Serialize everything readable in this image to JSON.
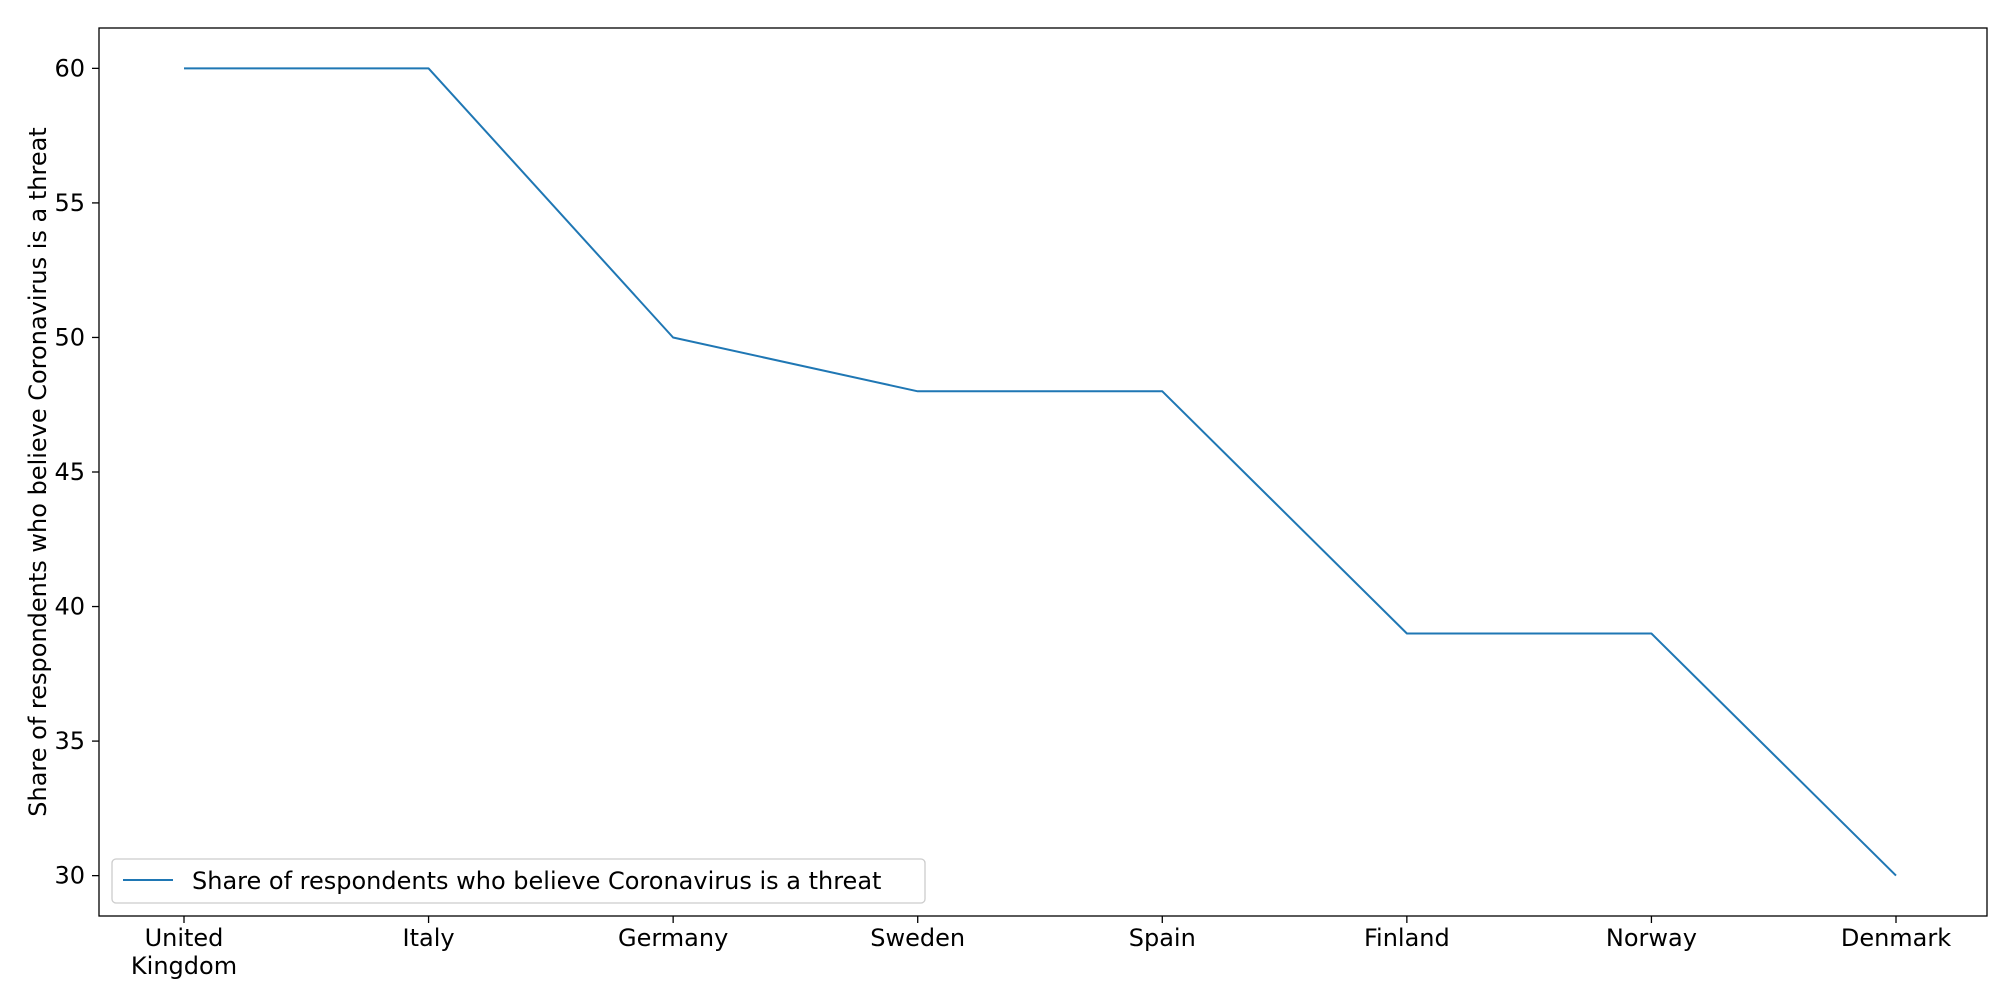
{
  "chart_data": {
    "type": "line",
    "categories": [
      "United\nKingdom",
      "Italy",
      "Germany",
      "Sweden",
      "Spain",
      "Finland",
      "Norway",
      "Denmark"
    ],
    "series": [
      {
        "name": "Share of respondents who believe Coronavirus is a threat",
        "values": [
          60,
          60,
          50,
          48,
          48,
          39,
          39,
          30
        ],
        "color": "#1f77b4"
      }
    ],
    "title": "",
    "xlabel": "",
    "ylabel": "Share of respondents who believe Coronavirus is a threat",
    "ylim": [
      28.5,
      61.5
    ],
    "yticks": [
      30,
      35,
      40,
      45,
      50,
      55,
      60
    ],
    "grid": false,
    "legend_position": "lower-left"
  }
}
